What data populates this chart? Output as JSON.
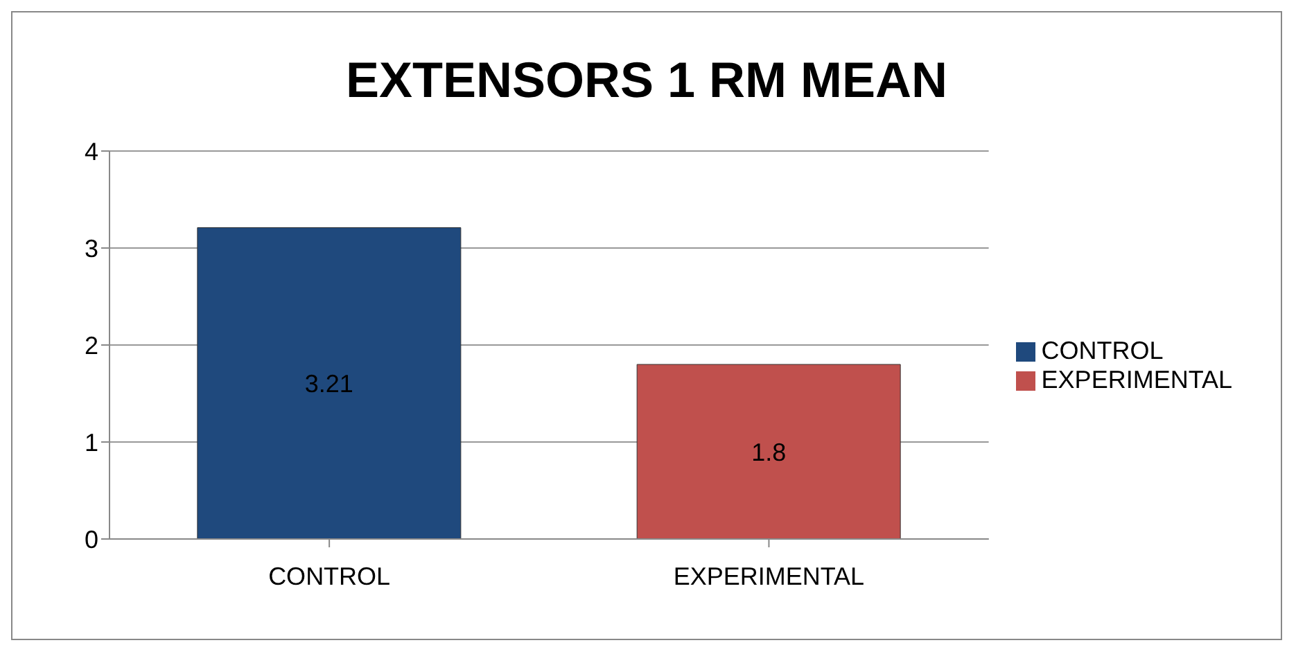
{
  "chart_data": {
    "type": "bar",
    "title": "EXTENSORS 1 RM MEAN",
    "categories": [
      "CONTROL",
      "EXPERIMENTAL"
    ],
    "series": [
      {
        "name": "CONTROL",
        "color": "#1f497d",
        "values": [
          3.21,
          null
        ]
      },
      {
        "name": "EXPERIMENTAL",
        "color": "#c0504d",
        "values": [
          null,
          1.8
        ]
      }
    ],
    "stacked": true,
    "ylim": [
      0,
      4
    ],
    "yticks": [
      0,
      1,
      2,
      3,
      4
    ],
    "grid": "y",
    "legend": "right",
    "data_labels": true
  }
}
